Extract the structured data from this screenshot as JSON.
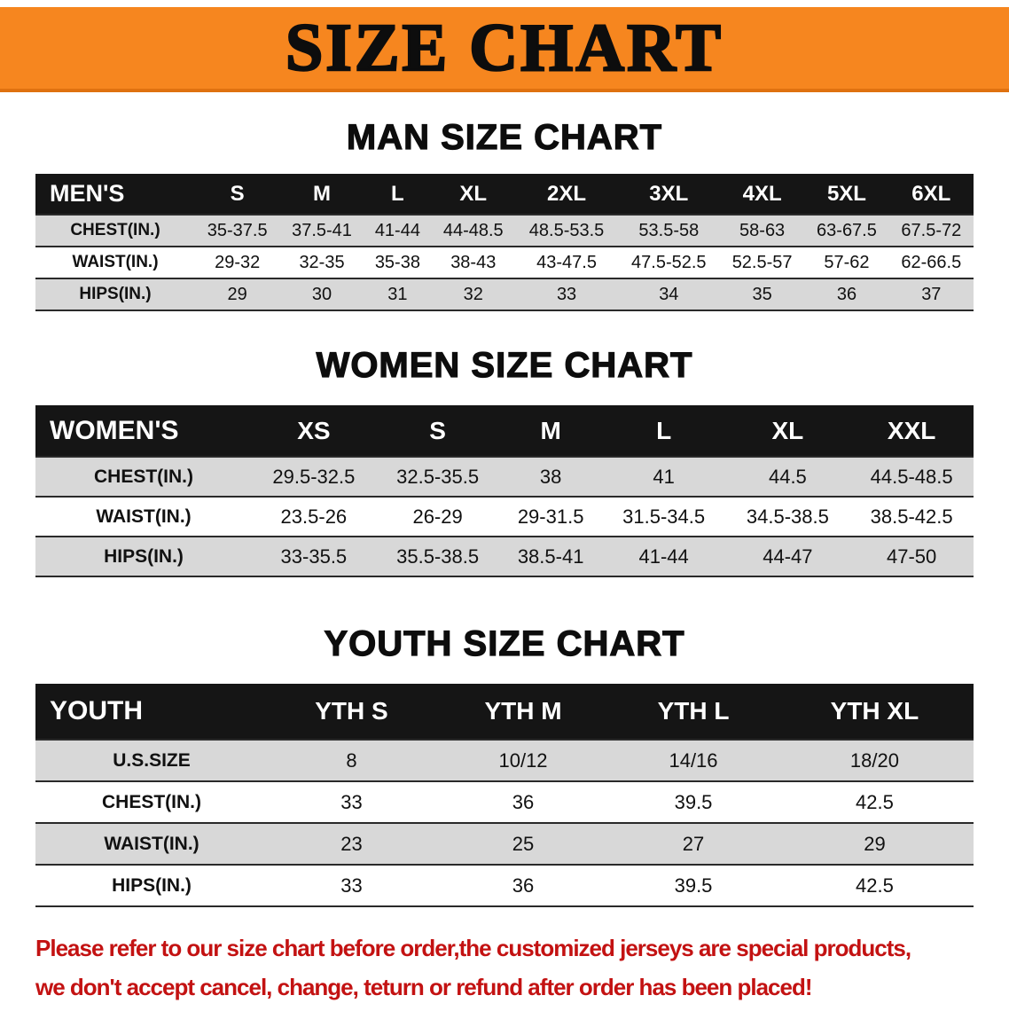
{
  "banner": {
    "title": "SIZE CHART"
  },
  "colors": {
    "banner_bg": "#f6861f",
    "table_header_bg": "#151515",
    "row_shaded": "#d8d8d8",
    "disclaimer_text": "#c31212"
  },
  "men": {
    "heading": "MAN SIZE CHART",
    "columns": [
      "MEN'S",
      "S",
      "M",
      "L",
      "XL",
      "2XL",
      "3XL",
      "4XL",
      "5XL",
      "6XL"
    ],
    "rows": [
      {
        "label": "CHEST(IN.)",
        "values": [
          "35-37.5",
          "37.5-41",
          "41-44",
          "44-48.5",
          "48.5-53.5",
          "53.5-58",
          "58-63",
          "63-67.5",
          "67.5-72"
        ]
      },
      {
        "label": "WAIST(IN.)",
        "values": [
          "29-32",
          "32-35",
          "35-38",
          "38-43",
          "43-47.5",
          "47.5-52.5",
          "52.5-57",
          "57-62",
          "62-66.5"
        ]
      },
      {
        "label": "HIPS(IN.)",
        "values": [
          "29",
          "30",
          "31",
          "32",
          "33",
          "34",
          "35",
          "36",
          "37"
        ]
      }
    ]
  },
  "women": {
    "heading": "WOMEN SIZE CHART",
    "columns": [
      "WOMEN'S",
      "XS",
      "S",
      "M",
      "L",
      "XL",
      "XXL"
    ],
    "rows": [
      {
        "label": "CHEST(IN.)",
        "values": [
          "29.5-32.5",
          "32.5-35.5",
          "38",
          "41",
          "44.5",
          "44.5-48.5"
        ]
      },
      {
        "label": "WAIST(IN.)",
        "values": [
          "23.5-26",
          "26-29",
          "29-31.5",
          "31.5-34.5",
          "34.5-38.5",
          "38.5-42.5"
        ]
      },
      {
        "label": "HIPS(IN.)",
        "values": [
          "33-35.5",
          "35.5-38.5",
          "38.5-41",
          "41-44",
          "44-47",
          "47-50"
        ]
      }
    ]
  },
  "youth": {
    "heading": "YOUTH SIZE CHART",
    "columns": [
      "YOUTH",
      "YTH S",
      "YTH M",
      "YTH L",
      "YTH XL"
    ],
    "rows": [
      {
        "label": "U.S.SIZE",
        "values": [
          "8",
          "10/12",
          "14/16",
          "18/20"
        ]
      },
      {
        "label": "CHEST(IN.)",
        "values": [
          "33",
          "36",
          "39.5",
          "42.5"
        ]
      },
      {
        "label": "WAIST(IN.)",
        "values": [
          "23",
          "25",
          "27",
          "29"
        ]
      },
      {
        "label": "HIPS(IN.)",
        "values": [
          "33",
          "36",
          "39.5",
          "42.5"
        ]
      }
    ]
  },
  "disclaimer": {
    "line1": "Please refer to our size chart before order,the customized jerseys are special products,",
    "line2": "we don't accept cancel, change, teturn or refund after order has been placed!"
  }
}
